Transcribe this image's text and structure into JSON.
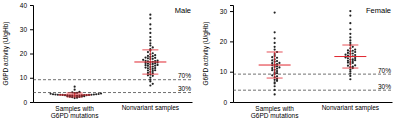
{
  "chart_data": [
    {
      "type": "scatter",
      "title": "Male",
      "y_label": "G6PD activity (U/gHb)",
      "categories": [
        "Samples with G6PD mutations",
        "Nonvariant samples"
      ],
      "values": [
        [
          2.1,
          2.4,
          2.6,
          2.8,
          3.0,
          3.1,
          2.5,
          2.9,
          3.3,
          3.5,
          2.2,
          2.7,
          3.0,
          3.2,
          2.6,
          2.8,
          3.4,
          3.8,
          4.2,
          5.1,
          6.3,
          1.8,
          2.0,
          2.3,
          2.9,
          3.1,
          2.7,
          2.5,
          3.6,
          4.0,
          2.8,
          3.0,
          2.4,
          2.6,
          3.2,
          1.6
        ],
        [
          8.5,
          9.2,
          10.1,
          10.8,
          11.3,
          11.9,
          12.4,
          12.8,
          13.1,
          13.5,
          13.9,
          14.2,
          14.6,
          14.9,
          15.2,
          15.5,
          15.8,
          16.0,
          16.3,
          16.6,
          16.9,
          17.1,
          17.4,
          17.7,
          18.0,
          18.3,
          18.6,
          18.9,
          19.3,
          19.7,
          20.1,
          20.6,
          21.2,
          21.8,
          22.5,
          23.3,
          24.2,
          25.4,
          26.8,
          28.5,
          30.2,
          32.0,
          34.5,
          36.0,
          15.0,
          16.1,
          14.0,
          17.0,
          13.0,
          18.2,
          12.0,
          19.0,
          11.0,
          16.5,
          15.7,
          14.4,
          17.8,
          13.7,
          16.8,
          15.3,
          6.8,
          7.5
        ]
      ],
      "mean": [
        2.9,
        16.5
      ],
      "sd": [
        0.8,
        5.0
      ],
      "color": "#222222",
      "ylim": [
        0,
        40
      ],
      "yticks": [
        0,
        10,
        20,
        30,
        40
      ],
      "reference_lines": [
        {
          "value": 9.2,
          "label": "70%"
        },
        {
          "value": 3.9,
          "label": "30%"
        }
      ]
    },
    {
      "type": "scatter",
      "title": "Female",
      "y_label": "G6PD activity (U/gHb)",
      "categories": [
        "Samples with G6PD mutations",
        "Nonvariant samples"
      ],
      "values": [
        [
          2.5,
          4.0,
          5.2,
          6.1,
          7.0,
          7.6,
          8.2,
          8.8,
          9.3,
          9.8,
          10.2,
          10.6,
          11.0,
          11.4,
          11.8,
          12.1,
          12.5,
          12.9,
          13.3,
          13.7,
          14.1,
          14.6,
          15.2,
          15.8,
          16.5,
          17.3,
          18.2,
          19.5,
          21.0,
          23.0,
          29.5,
          10.5,
          11.6,
          12.8,
          9.5,
          13.5,
          8.5,
          14.8,
          11.2,
          12.3,
          7.3,
          6.5
        ],
        [
          7.5,
          8.6,
          9.4,
          10.1,
          10.7,
          11.2,
          11.7,
          12.1,
          12.5,
          12.9,
          13.2,
          13.5,
          13.8,
          14.1,
          14.4,
          14.7,
          15.0,
          15.3,
          15.6,
          15.9,
          16.2,
          16.5,
          16.9,
          17.3,
          17.7,
          18.2,
          18.8,
          19.5,
          20.3,
          21.3,
          22.5,
          24.0,
          26.0,
          28.5,
          30.0,
          14.0,
          15.1,
          13.0,
          16.0,
          12.0,
          17.0,
          14.5,
          15.5,
          13.6,
          16.7,
          11.5
        ]
      ],
      "mean": [
        12.2,
        15.0
      ],
      "sd": [
        4.3,
        3.8
      ],
      "color": "#222222",
      "ylim": [
        0,
        32
      ],
      "yticks": [
        0,
        10,
        20,
        30
      ],
      "reference_lines": [
        {
          "value": 9.2,
          "label": "70%"
        },
        {
          "value": 3.9,
          "label": "30%"
        }
      ]
    }
  ]
}
